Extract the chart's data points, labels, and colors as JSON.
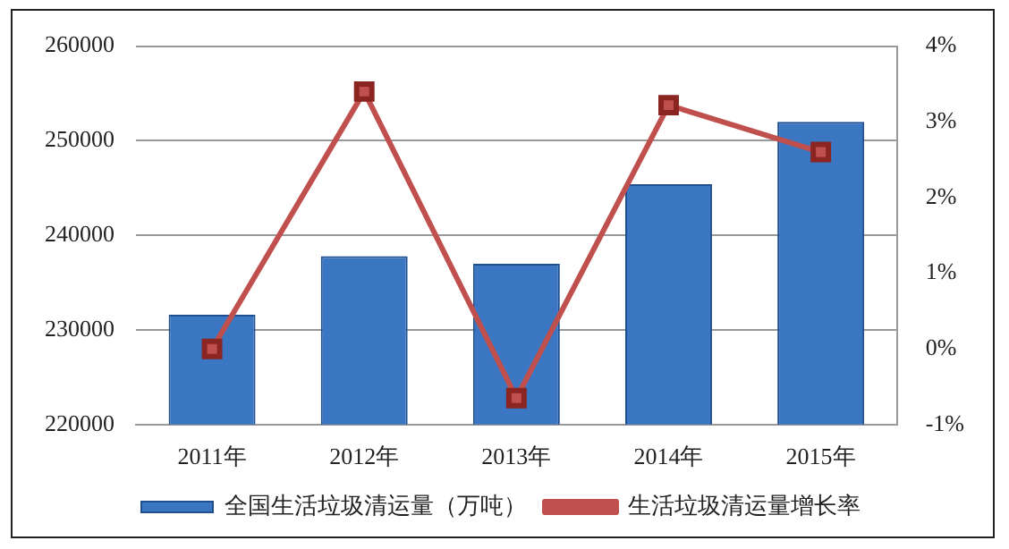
{
  "chart_data": {
    "type": "bar",
    "categories": [
      "2011年",
      "2012年",
      "2013年",
      "2014年",
      "2015年"
    ],
    "series": [
      {
        "name": "全国生活垃圾清运量（万吨）",
        "color": "#3a76c2",
        "values": [
          231600,
          237800,
          237000,
          245400,
          252000
        ]
      },
      {
        "name": "生活垃圾清运量增长率",
        "type": "line",
        "axis": "y2",
        "color": "#c0504d",
        "marker": "square",
        "values": [
          0,
          3.4,
          -0.65,
          3.22,
          2.6
        ]
      }
    ],
    "ylim": [
      220000,
      260000
    ],
    "yticks": [
      220000,
      230000,
      240000,
      250000,
      260000
    ],
    "y2lim": [
      -1,
      4
    ],
    "y2ticks": [
      {
        "value": -1,
        "label": "-1%"
      },
      {
        "value": 0,
        "label": "0%"
      },
      {
        "value": 1,
        "label": "1%"
      },
      {
        "value": 2,
        "label": "2%"
      },
      {
        "value": 3,
        "label": "3%"
      },
      {
        "value": 4,
        "label": "4%"
      }
    ],
    "grid": "y",
    "legend": "bottom"
  }
}
